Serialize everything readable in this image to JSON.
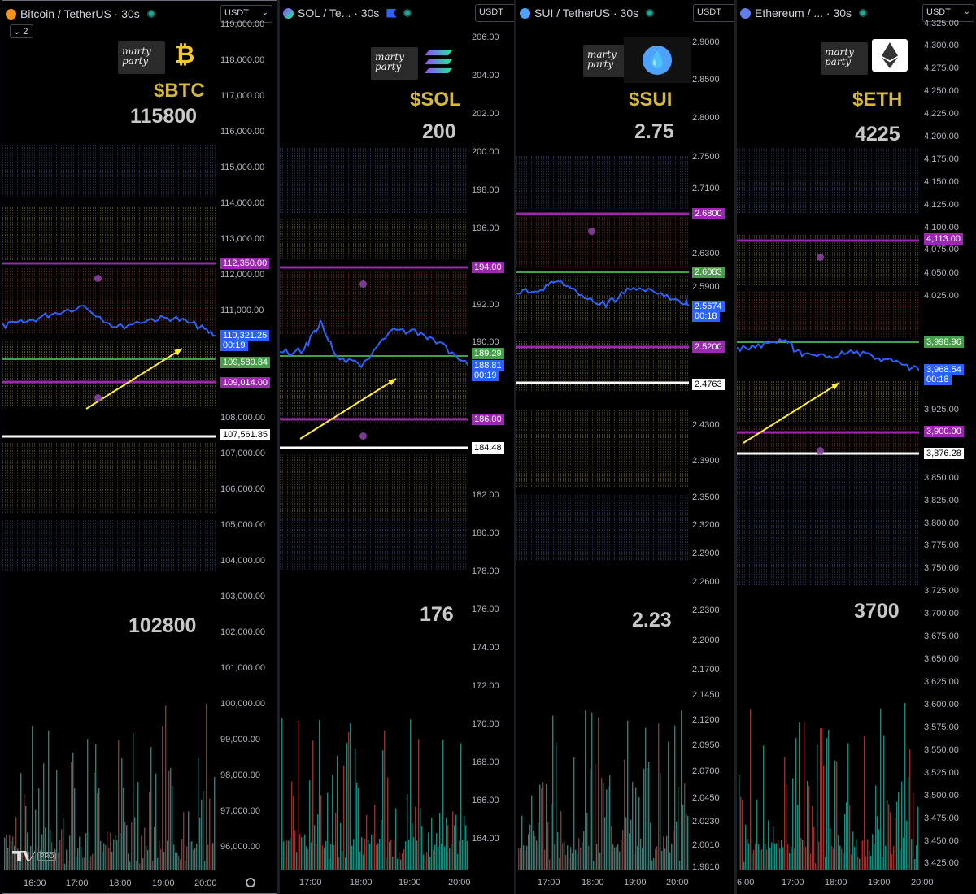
{
  "panels": [
    {
      "title": "Bitcoin / TetherUS · 30s",
      "currency": "USDT",
      "collapse_count": "2",
      "symbol": "$BTC",
      "level_top": "115800",
      "level_bottom": "102800",
      "price_ticks": [
        "119,000.00",
        "118,000.00",
        "117,000.00",
        "116,000.00",
        "115,000.00",
        "114,000.00",
        "113,000.00",
        "112,000.00",
        "111,000.00",
        "108,000.00",
        "107,000.00",
        "106,000.00",
        "105,000.00",
        "104,000.00",
        "103,000.00",
        "102,000.00",
        "101,000.00",
        "100,000.00",
        "99,000.00",
        "98,000.00",
        "97,000.00",
        "96,000.00"
      ],
      "time_ticks": [
        "16:00",
        "17:00",
        "18:00",
        "19:00",
        "20:00"
      ],
      "tags": [
        {
          "text": "112,350.00",
          "bg": "#9c27b0",
          "fg": "#ffffff"
        },
        {
          "text": "110,321.25",
          "bg": "#2962ff",
          "fg": "#ffffff"
        },
        {
          "text": "00:19",
          "bg": "#2962ff",
          "fg": "#ffffff"
        },
        {
          "text": "109,580.84",
          "bg": "#43a047",
          "fg": "#ffffff"
        },
        {
          "text": "109,014.00",
          "bg": "#9c27b0",
          "fg": "#ffffff"
        },
        {
          "text": "107,561.85",
          "bg": "#ffffff",
          "fg": "#000000"
        }
      ],
      "logo_text": "marty party",
      "coin_icon": "bitcoin-icon",
      "brand_badge": "PRO"
    },
    {
      "title": "SOL / Te... · 30s",
      "currency": "USDT",
      "symbol": "$SOL",
      "level_top": "200",
      "level_bottom": "176",
      "price_ticks": [
        "206.00",
        "204.00",
        "202.00",
        "200.00",
        "198.00",
        "196.00",
        "192.00",
        "190.00",
        "182.00",
        "180.00",
        "178.00",
        "176.00",
        "174.00",
        "172.00",
        "170.00",
        "168.00",
        "166.00",
        "164.00"
      ],
      "time_ticks": [
        "17:00",
        "18:00",
        "19:00",
        "20:00"
      ],
      "tags": [
        {
          "text": "194.00",
          "bg": "#9c27b0",
          "fg": "#ffffff"
        },
        {
          "text": "189.29",
          "bg": "#43a047",
          "fg": "#ffffff"
        },
        {
          "text": "188.81",
          "bg": "#2962ff",
          "fg": "#ffffff"
        },
        {
          "text": "00:19",
          "bg": "#2962ff",
          "fg": "#ffffff"
        },
        {
          "text": "186.00",
          "bg": "#9c27b0",
          "fg": "#ffffff"
        },
        {
          "text": "184.48",
          "bg": "#ffffff",
          "fg": "#000000"
        }
      ],
      "logo_text": "marty party",
      "coin_icon": "solana-icon"
    },
    {
      "title": "SUI / TetherUS · 30s",
      "currency": "USDT",
      "symbol": "$SUI",
      "level_top": "2.75",
      "level_bottom": "2.23",
      "price_ticks": [
        "2.9000",
        "2.8500",
        "2.8000",
        "2.7500",
        "2.7100",
        "2.6300",
        "2.5900",
        "2.4300",
        "2.3900",
        "2.3500",
        "2.3200",
        "2.2900",
        "2.2600",
        "2.2300",
        "2.2000",
        "2.1700",
        "2.1450",
        "2.1200",
        "2.0950",
        "2.0700",
        "2.0450",
        "2.0230",
        "2.0010",
        "1.9810"
      ],
      "time_ticks": [
        "17:00",
        "18:00",
        "19:00",
        "20:00"
      ],
      "tags": [
        {
          "text": "2.6800",
          "bg": "#9c27b0",
          "fg": "#ffffff"
        },
        {
          "text": "2.6083",
          "bg": "#43a047",
          "fg": "#ffffff"
        },
        {
          "text": "2.5674",
          "bg": "#2962ff",
          "fg": "#ffffff"
        },
        {
          "text": "00:18",
          "bg": "#2962ff",
          "fg": "#ffffff"
        },
        {
          "text": "2.5200",
          "bg": "#9c27b0",
          "fg": "#ffffff"
        },
        {
          "text": "2.4763",
          "bg": "#ffffff",
          "fg": "#000000"
        }
      ],
      "logo_text": "marty party",
      "coin_icon": "sui-icon"
    },
    {
      "title": "Ethereum / ... · 30s",
      "currency": "USDT",
      "symbol": "$ETH",
      "level_top": "4225",
      "level_bottom": "3700",
      "price_ticks": [
        "4,325.00",
        "4,300.00",
        "4,275.00",
        "4,250.00",
        "4,225.00",
        "4,200.00",
        "4,175.00",
        "4,150.00",
        "4,125.00",
        "4,100.00",
        "4,075.00",
        "4,050.00",
        "4,025.00",
        "3,925.00",
        "3,850.00",
        "3,825.00",
        "3,800.00",
        "3,775.00",
        "3,750.00",
        "3,725.00",
        "3,700.00",
        "3,675.00",
        "3,650.00",
        "3,625.00",
        "3,600.00",
        "3,575.00",
        "3,550.00",
        "3,525.00",
        "3,500.00",
        "3,475.00",
        "3,450.00",
        "3,425.00"
      ],
      "time_ticks": [
        "6:00",
        "17:00",
        "18:00",
        "19:00",
        "20:00"
      ],
      "tags": [
        {
          "text": "4,113.00",
          "bg": "#9c27b0",
          "fg": "#ffffff"
        },
        {
          "text": "3,998.96",
          "bg": "#43a047",
          "fg": "#ffffff"
        },
        {
          "text": "3,968.54",
          "bg": "#2962ff",
          "fg": "#ffffff"
        },
        {
          "text": "00:18",
          "bg": "#2962ff",
          "fg": "#ffffff"
        },
        {
          "text": "3,900.00",
          "bg": "#9c27b0",
          "fg": "#ffffff"
        },
        {
          "text": "3,876.28",
          "bg": "#ffffff",
          "fg": "#000000"
        }
      ],
      "logo_text": "marty party",
      "coin_icon": "ethereum-icon"
    }
  ],
  "colors": {
    "price_line": "#2962ff",
    "up_volume": "#26a69a",
    "down_volume": "#ef5350",
    "arrow": "#ffeb3b",
    "purple_level": "#9c27b0",
    "green_level": "#43a047",
    "white_level": "#ffffff"
  }
}
